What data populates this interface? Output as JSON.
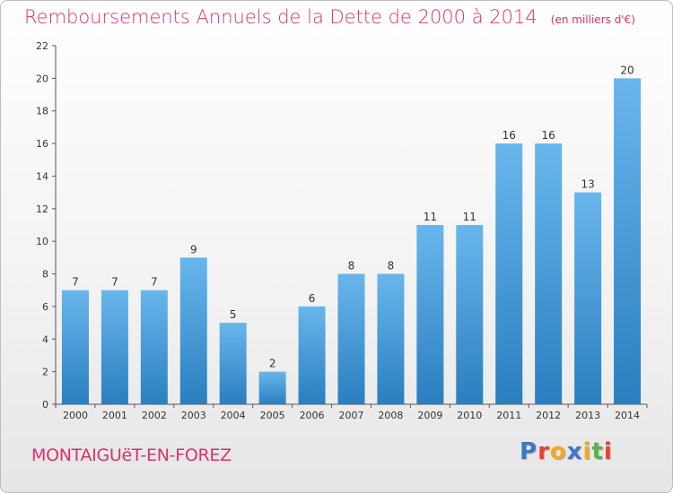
{
  "title": "Remboursements Annuels de la Dette de 2000 à 2014",
  "unit": "(en milliers d'€)",
  "commune": "MONTAIGUëT-EN-FOREZ",
  "logo": {
    "text": "Proxiti",
    "colors": [
      "#3a78c9",
      "#e8422f",
      "#f5a623",
      "#3a78c9",
      "#f5a623",
      "#5ab245",
      "#e8422f"
    ]
  },
  "colors": {
    "title": "#d6336c",
    "bar_light": "#69b6ec",
    "bar_dark": "#2a7fc0"
  },
  "chart_data": {
    "type": "bar",
    "categories": [
      "2000",
      "2001",
      "2002",
      "2003",
      "2004",
      "2005",
      "2006",
      "2007",
      "2008",
      "2009",
      "2010",
      "2011",
      "2012",
      "2013",
      "2014"
    ],
    "values": [
      7,
      7,
      7,
      9,
      5,
      2,
      6,
      8,
      8,
      11,
      11,
      16,
      16,
      13,
      20
    ],
    "data_labels": [
      "7",
      "7",
      "7",
      "9",
      "5",
      "2",
      "6",
      "8",
      "8",
      "11",
      "11",
      "16",
      "16",
      "13",
      "20"
    ],
    "yticks": [
      "0",
      "2",
      "4",
      "6",
      "8",
      "10",
      "12",
      "14",
      "16",
      "18",
      "20",
      "22"
    ],
    "ylim": [
      0,
      22
    ],
    "ytick_step": 2,
    "grid": false,
    "xlabel": "",
    "ylabel": ""
  }
}
